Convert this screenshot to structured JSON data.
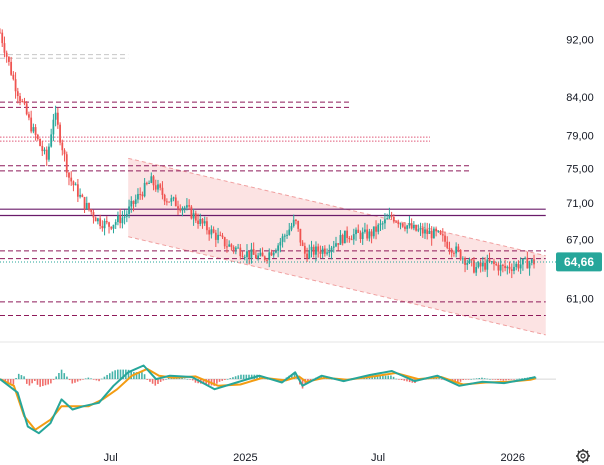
{
  "chart_data": [
    {
      "type": "candlestick",
      "title": "",
      "price_axis": {
        "ticks": [
          "92,00",
          "84,00",
          "79,00",
          "75,00",
          "71,00",
          "67,00",
          "61,00"
        ],
        "scale": "log",
        "range": [
          57.5,
          97
        ]
      },
      "time_axis": {
        "ticks": [
          "Jul",
          "2025",
          "Jul",
          "2026"
        ],
        "range": [
          "2024-02-01",
          "2026-03-01"
        ]
      },
      "last_price": {
        "label": "64,66",
        "value": 64.66,
        "color": "#26a69a"
      },
      "candles_trend": [
        {
          "date": "2024-02-01",
          "close": 93
        },
        {
          "date": "2024-02-20",
          "close": 86
        },
        {
          "date": "2024-03-15",
          "close": 80
        },
        {
          "date": "2024-04-05",
          "close": 76
        },
        {
          "date": "2024-04-15",
          "close": 82
        },
        {
          "date": "2024-05-05",
          "close": 74
        },
        {
          "date": "2024-05-25",
          "close": 71
        },
        {
          "date": "2024-06-15",
          "close": 69
        },
        {
          "date": "2024-06-28",
          "close": 68.5
        },
        {
          "date": "2024-07-20",
          "close": 69.5
        },
        {
          "date": "2024-08-10",
          "close": 72
        },
        {
          "date": "2024-08-25",
          "close": 73.5
        },
        {
          "date": "2024-09-15",
          "close": 71.5
        },
        {
          "date": "2024-10-10",
          "close": 70.5
        },
        {
          "date": "2024-11-05",
          "close": 68.5
        },
        {
          "date": "2024-12-05",
          "close": 66.5
        },
        {
          "date": "2025-01-05",
          "close": 65.5
        },
        {
          "date": "2025-01-25",
          "close": 65
        },
        {
          "date": "2025-02-15",
          "close": 66.5
        },
        {
          "date": "2025-03-10",
          "close": 69
        },
        {
          "date": "2025-03-22",
          "close": 65.5
        },
        {
          "date": "2025-04-20",
          "close": 66
        },
        {
          "date": "2025-05-20",
          "close": 67.5
        },
        {
          "date": "2025-06-20",
          "close": 67.5
        },
        {
          "date": "2025-07-20",
          "close": 69.5
        },
        {
          "date": "2025-08-20",
          "close": 68
        },
        {
          "date": "2025-09-20",
          "close": 67.5
        },
        {
          "date": "2025-10-20",
          "close": 65.5
        },
        {
          "date": "2025-11-10",
          "close": 64
        },
        {
          "date": "2025-12-01",
          "close": 64.5
        },
        {
          "date": "2025-12-20",
          "close": 64
        },
        {
          "date": "2026-01-15",
          "close": 64.5
        },
        {
          "date": "2026-01-30",
          "close": 64.66
        }
      ],
      "horizontal_levels": [
        {
          "value": 89.8,
          "style": "dashed",
          "color": "#c8c8c8",
          "from": "2024-02-01",
          "to": "2024-07-25"
        },
        {
          "value": 89.3,
          "style": "dashed",
          "color": "#c8c8c8",
          "from": "2024-02-01",
          "to": "2024-07-25"
        },
        {
          "value": 83.3,
          "style": "dashed",
          "color": "#8e1a5a",
          "from": "2024-02-01",
          "to": "2025-05-25"
        },
        {
          "value": 82.6,
          "style": "dashed",
          "color": "#8e1a5a",
          "from": "2024-02-01",
          "to": "2025-05-25"
        },
        {
          "value": 78.8,
          "style": "dotted",
          "color": "#e05a7a",
          "from": "2024-02-01",
          "to": "2025-09-10"
        },
        {
          "value": 78.3,
          "style": "dotted",
          "color": "#e05a7a",
          "from": "2024-02-01",
          "to": "2025-09-10"
        },
        {
          "value": 75.3,
          "style": "dashed",
          "color": "#8e1a5a",
          "from": "2024-02-01",
          "to": "2025-11-05"
        },
        {
          "value": 74.7,
          "style": "dashed",
          "color": "#8e1a5a",
          "from": "2024-02-01",
          "to": "2025-11-05"
        },
        {
          "value": 70.3,
          "style": "solid",
          "color": "#6a1b6a",
          "from": "2024-02-01",
          "to": "2026-02-15"
        },
        {
          "value": 69.6,
          "style": "solid",
          "color": "#6a1b6a",
          "from": "2024-02-01",
          "to": "2026-02-15"
        },
        {
          "value": 65.8,
          "style": "dashed",
          "color": "#8e1a5a",
          "from": "2024-02-01",
          "to": "2026-02-15"
        },
        {
          "value": 65.0,
          "style": "dashed",
          "color": "#8e1a5a",
          "from": "2024-02-01",
          "to": "2026-02-15"
        },
        {
          "value": 60.7,
          "style": "dashed",
          "color": "#8e1a5a",
          "from": "2024-02-01",
          "to": "2026-02-15"
        },
        {
          "value": 59.4,
          "style": "dashed",
          "color": "#8e1a5a",
          "from": "2024-02-01",
          "to": "2026-02-15"
        }
      ],
      "channel": {
        "color": "#fbdada",
        "border": "#f0a0a0",
        "upper": [
          {
            "date": "2024-07-25",
            "value": 76.2
          },
          {
            "date": "2026-02-15",
            "value": 65.3
          }
        ],
        "lower": [
          {
            "date": "2024-07-25",
            "value": 67.3
          },
          {
            "date": "2026-02-15",
            "value": 57.6
          }
        ]
      },
      "up_color": "#26a69a",
      "down_color": "#ef5350",
      "grid": false,
      "legend": "none"
    },
    {
      "type": "line",
      "panel": "oscillator",
      "series": [
        {
          "color": "#26a69a",
          "values": [
            {
              "date": "2024-02-01",
              "value": 0
            },
            {
              "date": "2024-02-25",
              "value": -2
            },
            {
              "date": "2024-03-10",
              "value": -7
            },
            {
              "date": "2024-03-25",
              "value": -8
            },
            {
              "date": "2024-04-10",
              "value": -6.5
            },
            {
              "date": "2024-04-25",
              "value": -3
            },
            {
              "date": "2024-05-10",
              "value": -4.5
            },
            {
              "date": "2024-05-25",
              "value": -4
            },
            {
              "date": "2024-06-15",
              "value": -3.5
            },
            {
              "date": "2024-07-05",
              "value": -1
            },
            {
              "date": "2024-07-25",
              "value": 1
            },
            {
              "date": "2024-08-15",
              "value": 2
            },
            {
              "date": "2024-09-01",
              "value": 0
            },
            {
              "date": "2024-09-20",
              "value": 0.5
            },
            {
              "date": "2024-10-20",
              "value": 0.3
            },
            {
              "date": "2024-11-20",
              "value": -1.5
            },
            {
              "date": "2024-12-20",
              "value": -0.5
            },
            {
              "date": "2025-01-20",
              "value": 0.5
            },
            {
              "date": "2025-02-20",
              "value": -0.5
            },
            {
              "date": "2025-03-10",
              "value": 1
            },
            {
              "date": "2025-03-20",
              "value": -1
            },
            {
              "date": "2025-04-15",
              "value": 0.5
            },
            {
              "date": "2025-05-15",
              "value": -0.3
            },
            {
              "date": "2025-06-20",
              "value": 0.6
            },
            {
              "date": "2025-07-20",
              "value": 1.2
            },
            {
              "date": "2025-08-20",
              "value": -0.3
            },
            {
              "date": "2025-09-20",
              "value": 0.5
            },
            {
              "date": "2025-10-20",
              "value": -1
            },
            {
              "date": "2025-11-20",
              "value": -0.4
            },
            {
              "date": "2025-12-20",
              "value": -0.6
            },
            {
              "date": "2026-01-20",
              "value": 0
            },
            {
              "date": "2026-02-01",
              "value": 0.3
            }
          ]
        },
        {
          "color": "#f39c12",
          "values": [
            {
              "date": "2024-02-01",
              "value": 0
            },
            {
              "date": "2024-02-20",
              "value": -1
            },
            {
              "date": "2024-03-05",
              "value": -5.5
            },
            {
              "date": "2024-03-20",
              "value": -7.5
            },
            {
              "date": "2024-04-10",
              "value": -6
            },
            {
              "date": "2024-04-25",
              "value": -4
            },
            {
              "date": "2024-05-15",
              "value": -4
            },
            {
              "date": "2024-06-01",
              "value": -4
            },
            {
              "date": "2024-06-20",
              "value": -3
            },
            {
              "date": "2024-07-10",
              "value": -1.5
            },
            {
              "date": "2024-07-30",
              "value": 0.5
            },
            {
              "date": "2024-08-20",
              "value": 1.5
            },
            {
              "date": "2024-09-05",
              "value": 0.5
            },
            {
              "date": "2024-09-25",
              "value": 0.2
            },
            {
              "date": "2024-10-25",
              "value": 0.4
            },
            {
              "date": "2024-11-25",
              "value": -1
            },
            {
              "date": "2024-12-25",
              "value": -0.8
            },
            {
              "date": "2025-01-25",
              "value": 0.2
            },
            {
              "date": "2025-02-25",
              "value": -0.2
            },
            {
              "date": "2025-03-15",
              "value": 0.4
            },
            {
              "date": "2025-03-25",
              "value": -0.4
            },
            {
              "date": "2025-04-20",
              "value": 0.2
            },
            {
              "date": "2025-05-20",
              "value": -0.1
            },
            {
              "date": "2025-06-25",
              "value": 0.4
            },
            {
              "date": "2025-07-25",
              "value": 0.9
            },
            {
              "date": "2025-08-25",
              "value": 0
            },
            {
              "date": "2025-09-25",
              "value": 0.3
            },
            {
              "date": "2025-10-25",
              "value": -0.8
            },
            {
              "date": "2025-11-25",
              "value": -0.5
            },
            {
              "date": "2025-12-25",
              "value": -0.4
            },
            {
              "date": "2026-01-25",
              "value": -0.1
            },
            {
              "date": "2026-02-01",
              "value": 0.1
            }
          ]
        }
      ],
      "histogram": {
        "up_color": "#26a69a",
        "down_color": "#ef5350"
      },
      "ylim": [
        -9,
        4
      ]
    }
  ],
  "toolbar": {
    "settings_icon": "gear-icon"
  }
}
